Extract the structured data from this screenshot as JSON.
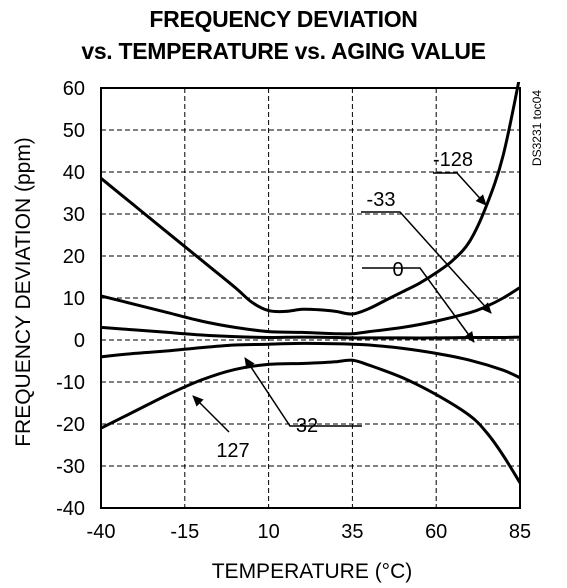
{
  "chart_data": {
    "type": "line",
    "title": "FREQUENCY DEVIATION",
    "subtitle": "vs. TEMPERATURE vs. AGING VALUE",
    "xlabel": "TEMPERATURE (°C)",
    "ylabel": "FREQUENCY DEVIATION (ppm)",
    "xlim": [
      -40,
      85
    ],
    "ylim": [
      -40,
      60
    ],
    "xticks": [
      -40,
      -15,
      10,
      35,
      60,
      85
    ],
    "yticks": [
      -40,
      -30,
      -20,
      -10,
      0,
      10,
      20,
      30,
      40,
      50,
      60
    ],
    "grid": true,
    "legend": "none",
    "watermark": "DS3231 toc04",
    "series": [
      {
        "name": "-128",
        "x": [
          -40,
          -30,
          -20,
          -10,
          0,
          5,
          10,
          15,
          20,
          25,
          30,
          35,
          40,
          45,
          50,
          55,
          60,
          65,
          70,
          75,
          80,
          85
        ],
        "y": [
          38.5,
          32,
          25.5,
          19,
          12.5,
          9,
          7,
          6.8,
          7.3,
          7.2,
          6.8,
          6.2,
          7.5,
          9.5,
          11.5,
          13.5,
          16,
          19,
          23.5,
          32,
          44,
          63
        ]
      },
      {
        "name": "-33",
        "x": [
          -40,
          -30,
          -20,
          -10,
          0,
          10,
          20,
          30,
          35,
          40,
          50,
          60,
          70,
          75,
          80,
          85
        ],
        "y": [
          10.5,
          8.5,
          6.5,
          4.5,
          3,
          2,
          1.8,
          1.5,
          1.5,
          2,
          3,
          4.5,
          6.5,
          8,
          10,
          12.5
        ]
      },
      {
        "name": "0",
        "x": [
          -40,
          -30,
          -20,
          -10,
          0,
          10,
          20,
          30,
          35,
          40,
          50,
          60,
          70,
          80,
          85
        ],
        "y": [
          3,
          2.4,
          1.8,
          1.2,
          0.8,
          0.6,
          0.7,
          0.6,
          0.5,
          0.5,
          0.5,
          0.5,
          0.6,
          0.6,
          0.7
        ]
      },
      {
        "name": "32",
        "x": [
          -40,
          -30,
          -20,
          -10,
          0,
          10,
          20,
          30,
          35,
          40,
          50,
          60,
          70,
          80,
          85
        ],
        "y": [
          -4,
          -3.2,
          -2.6,
          -1.8,
          -1.2,
          -1,
          -0.8,
          -0.9,
          -1,
          -1.2,
          -2,
          -3.2,
          -4.8,
          -7.2,
          -9
        ]
      },
      {
        "name": "127",
        "x": [
          -40,
          -30,
          -20,
          -10,
          0,
          10,
          20,
          25,
          30,
          35,
          40,
          50,
          60,
          70,
          75,
          80,
          85
        ],
        "y": [
          -21,
          -17,
          -13,
          -9.5,
          -7,
          -5.8,
          -5.6,
          -5.4,
          -5.2,
          -4.8,
          -6,
          -9,
          -13,
          -18,
          -22,
          -27.5,
          -34
        ]
      }
    ],
    "annotations": [
      {
        "text": "-128",
        "points_to_series": "-128"
      },
      {
        "text": "-33",
        "points_to_series": "-33"
      },
      {
        "text": "0",
        "points_to_series": "0"
      },
      {
        "text": "32",
        "points_to_series": "32"
      },
      {
        "text": "127",
        "points_to_series": "127"
      }
    ]
  }
}
